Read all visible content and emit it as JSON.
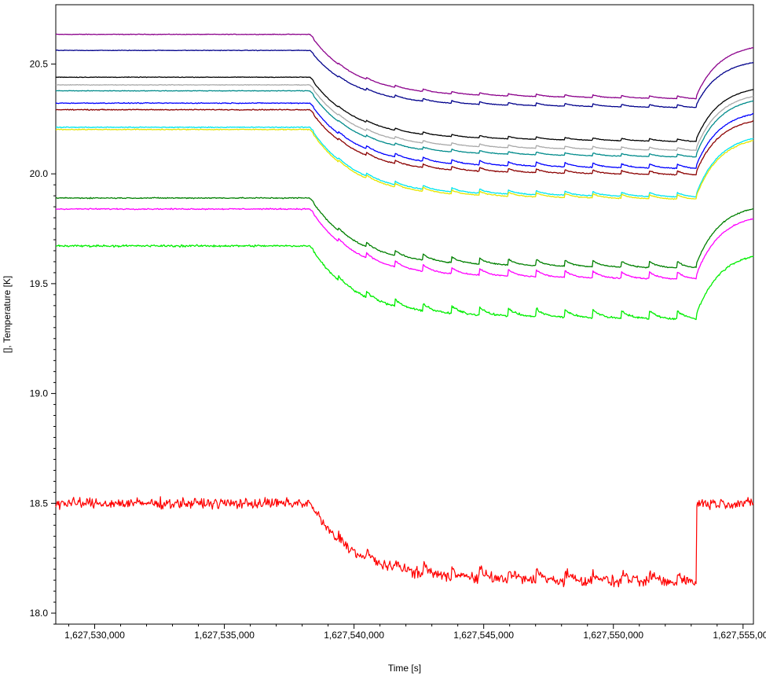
{
  "chart_data": {
    "type": "line",
    "xlabel": "Time [s]",
    "ylabel": "[], Temperature [K]",
    "xlim": [
      1627528500,
      1627555400
    ],
    "ylim": [
      17.95,
      20.77
    ],
    "x_ticks": [
      1627530000,
      1627535000,
      1627540000,
      1627545000,
      1627550000,
      1627555000
    ],
    "x_tick_labels": [
      "1,627,530,000",
      "1,627,535,000",
      "1,627,540,000",
      "1,627,545,000",
      "1,627,550,000",
      "1,627,555,000"
    ],
    "y_ticks": [
      18.0,
      18.5,
      19.0,
      19.5,
      20.0,
      20.5
    ],
    "y_tick_labels": [
      "18.0",
      "18.5",
      "19.0",
      "19.5",
      "20.0",
      "20.5"
    ],
    "grid": false,
    "legend": "none",
    "change_points": {
      "drop_start": 1627538300,
      "recover_start": 1627553200
    },
    "series": [
      {
        "color": "#8b008b",
        "baseline": 20.635,
        "min": 20.345,
        "after_end": 20.595,
        "ripple": 0.012,
        "noise": 0.002
      },
      {
        "color": "#00008b",
        "baseline": 20.562,
        "min": 20.305,
        "after_end": 20.525,
        "ripple": 0.013,
        "noise": 0.002
      },
      {
        "color": "#000000",
        "baseline": 20.44,
        "min": 20.15,
        "after_end": 20.405,
        "ripple": 0.012,
        "noise": 0.002
      },
      {
        "color": "#a9a9a9",
        "baseline": 20.405,
        "min": 20.11,
        "after_end": 20.375,
        "ripple": 0.013,
        "noise": 0.002
      },
      {
        "color": "#008b8b",
        "baseline": 20.378,
        "min": 20.08,
        "after_end": 20.355,
        "ripple": 0.013,
        "noise": 0.002
      },
      {
        "color": "#0000ff",
        "baseline": 20.322,
        "min": 20.03,
        "after_end": 20.295,
        "ripple": 0.02,
        "noise": 0.003
      },
      {
        "color": "#8b0000",
        "baseline": 20.292,
        "min": 20.0,
        "after_end": 20.262,
        "ripple": 0.018,
        "noise": 0.003
      },
      {
        "color": "#00e5ee",
        "baseline": 20.212,
        "min": 19.9,
        "after_end": 20.185,
        "ripple": 0.02,
        "noise": 0.003
      },
      {
        "color": "#e5e500",
        "baseline": 20.202,
        "min": 19.89,
        "after_end": 20.175,
        "ripple": 0.02,
        "noise": 0.003
      },
      {
        "color": "#008000",
        "baseline": 19.89,
        "min": 19.58,
        "after_end": 19.865,
        "ripple": 0.03,
        "noise": 0.004
      },
      {
        "color": "#ff00ff",
        "baseline": 19.84,
        "min": 19.53,
        "after_end": 19.82,
        "ripple": 0.033,
        "noise": 0.004
      },
      {
        "color": "#00ee00",
        "baseline": 19.672,
        "min": 19.35,
        "after_end": 19.65,
        "ripple": 0.04,
        "noise": 0.007
      },
      {
        "color": "#ff0000",
        "baseline": 18.5,
        "min": 18.15,
        "after_end": 18.5,
        "ripple": 0.05,
        "noise": 0.035
      }
    ]
  }
}
